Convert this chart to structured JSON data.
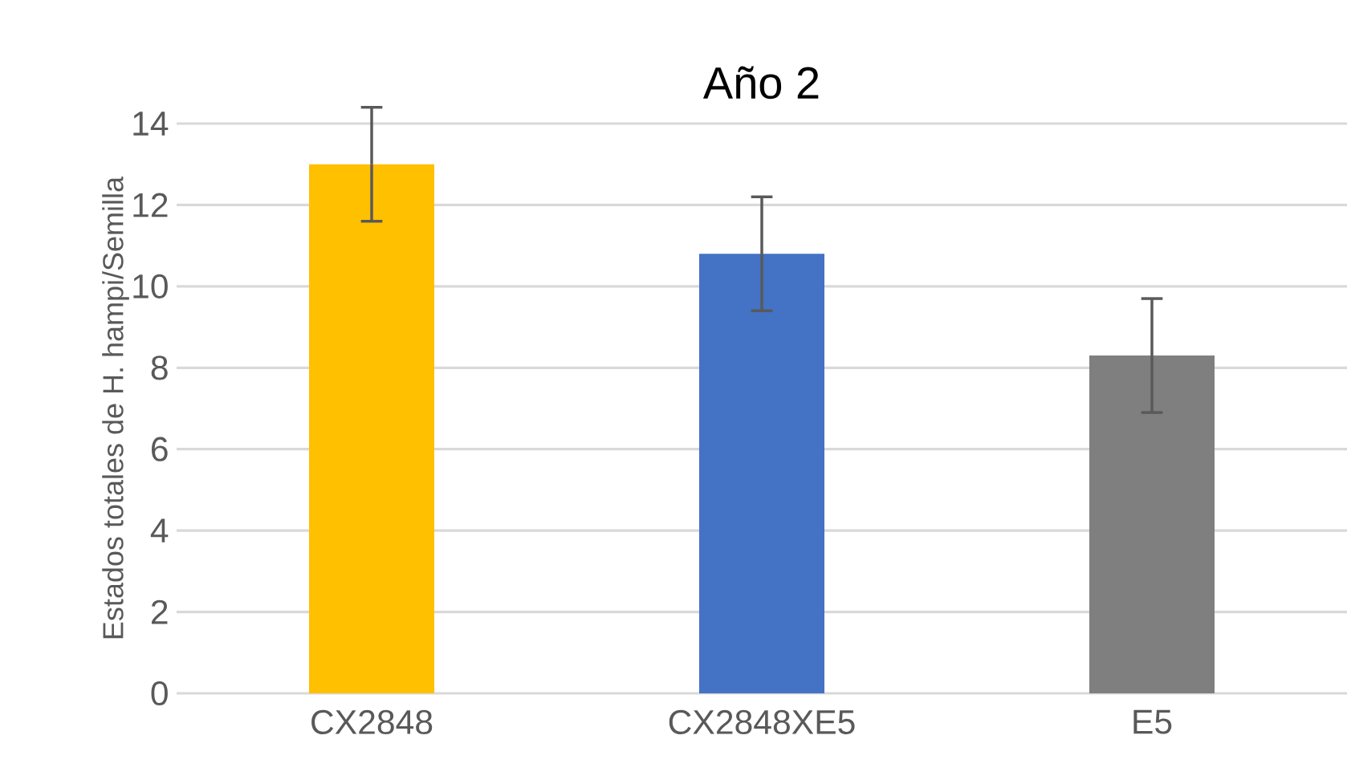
{
  "chart_data": {
    "type": "bar",
    "title": "Año 2",
    "ylabel": "Estados totales de H. hampi/Semilla",
    "categories": [
      "CX2848",
      "CX2848XE5",
      "E5"
    ],
    "values": [
      13.0,
      10.8,
      8.3
    ],
    "errors": [
      1.4,
      1.4,
      1.4
    ],
    "colors": [
      "#ffc000",
      "#4472c4",
      "#7f7f7f"
    ],
    "ylim": [
      0,
      14
    ],
    "yticks": [
      0,
      2,
      4,
      6,
      8,
      10,
      12,
      14
    ],
    "grid": "y"
  }
}
